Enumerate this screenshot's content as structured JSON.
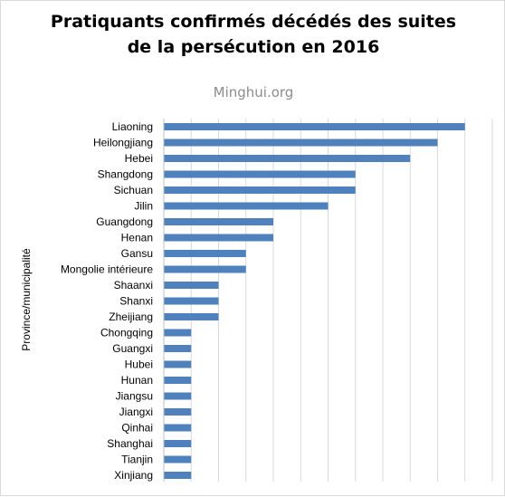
{
  "chart_data": {
    "type": "bar",
    "orientation": "horizontal",
    "title": "Pratiquants confirmés décédés des suites de la persécution en 2016",
    "title_lines": [
      "Pratiquants confirmés décédés des suites",
      "de la persécution en 2016"
    ],
    "source": "Minghui.org",
    "xlabel": "",
    "ylabel": "Province/municipalité",
    "categories": [
      "Liaoning",
      "Heilongjiang",
      "Hebei",
      "Shangdong",
      "Sichuan",
      "Jilin",
      "Guangdong",
      "Henan",
      "Gansu",
      "Mongolie intérieure",
      "Shaanxi",
      "Shanxi",
      "Zheijiang",
      "Chongqing",
      "Guangxi",
      "Hubei",
      "Hunan",
      "Jiangsu",
      "Jiangxi",
      "Qinhai",
      "Shanghai",
      "Tianjin",
      "Xinjiang"
    ],
    "values": [
      11,
      10,
      9,
      7,
      7,
      6,
      4,
      4,
      3,
      3,
      2,
      2,
      2,
      1,
      1,
      1,
      1,
      1,
      1,
      1,
      1,
      1,
      1
    ],
    "xlim": [
      0,
      12
    ],
    "grid": true,
    "bar_color": "#4f81bd"
  }
}
